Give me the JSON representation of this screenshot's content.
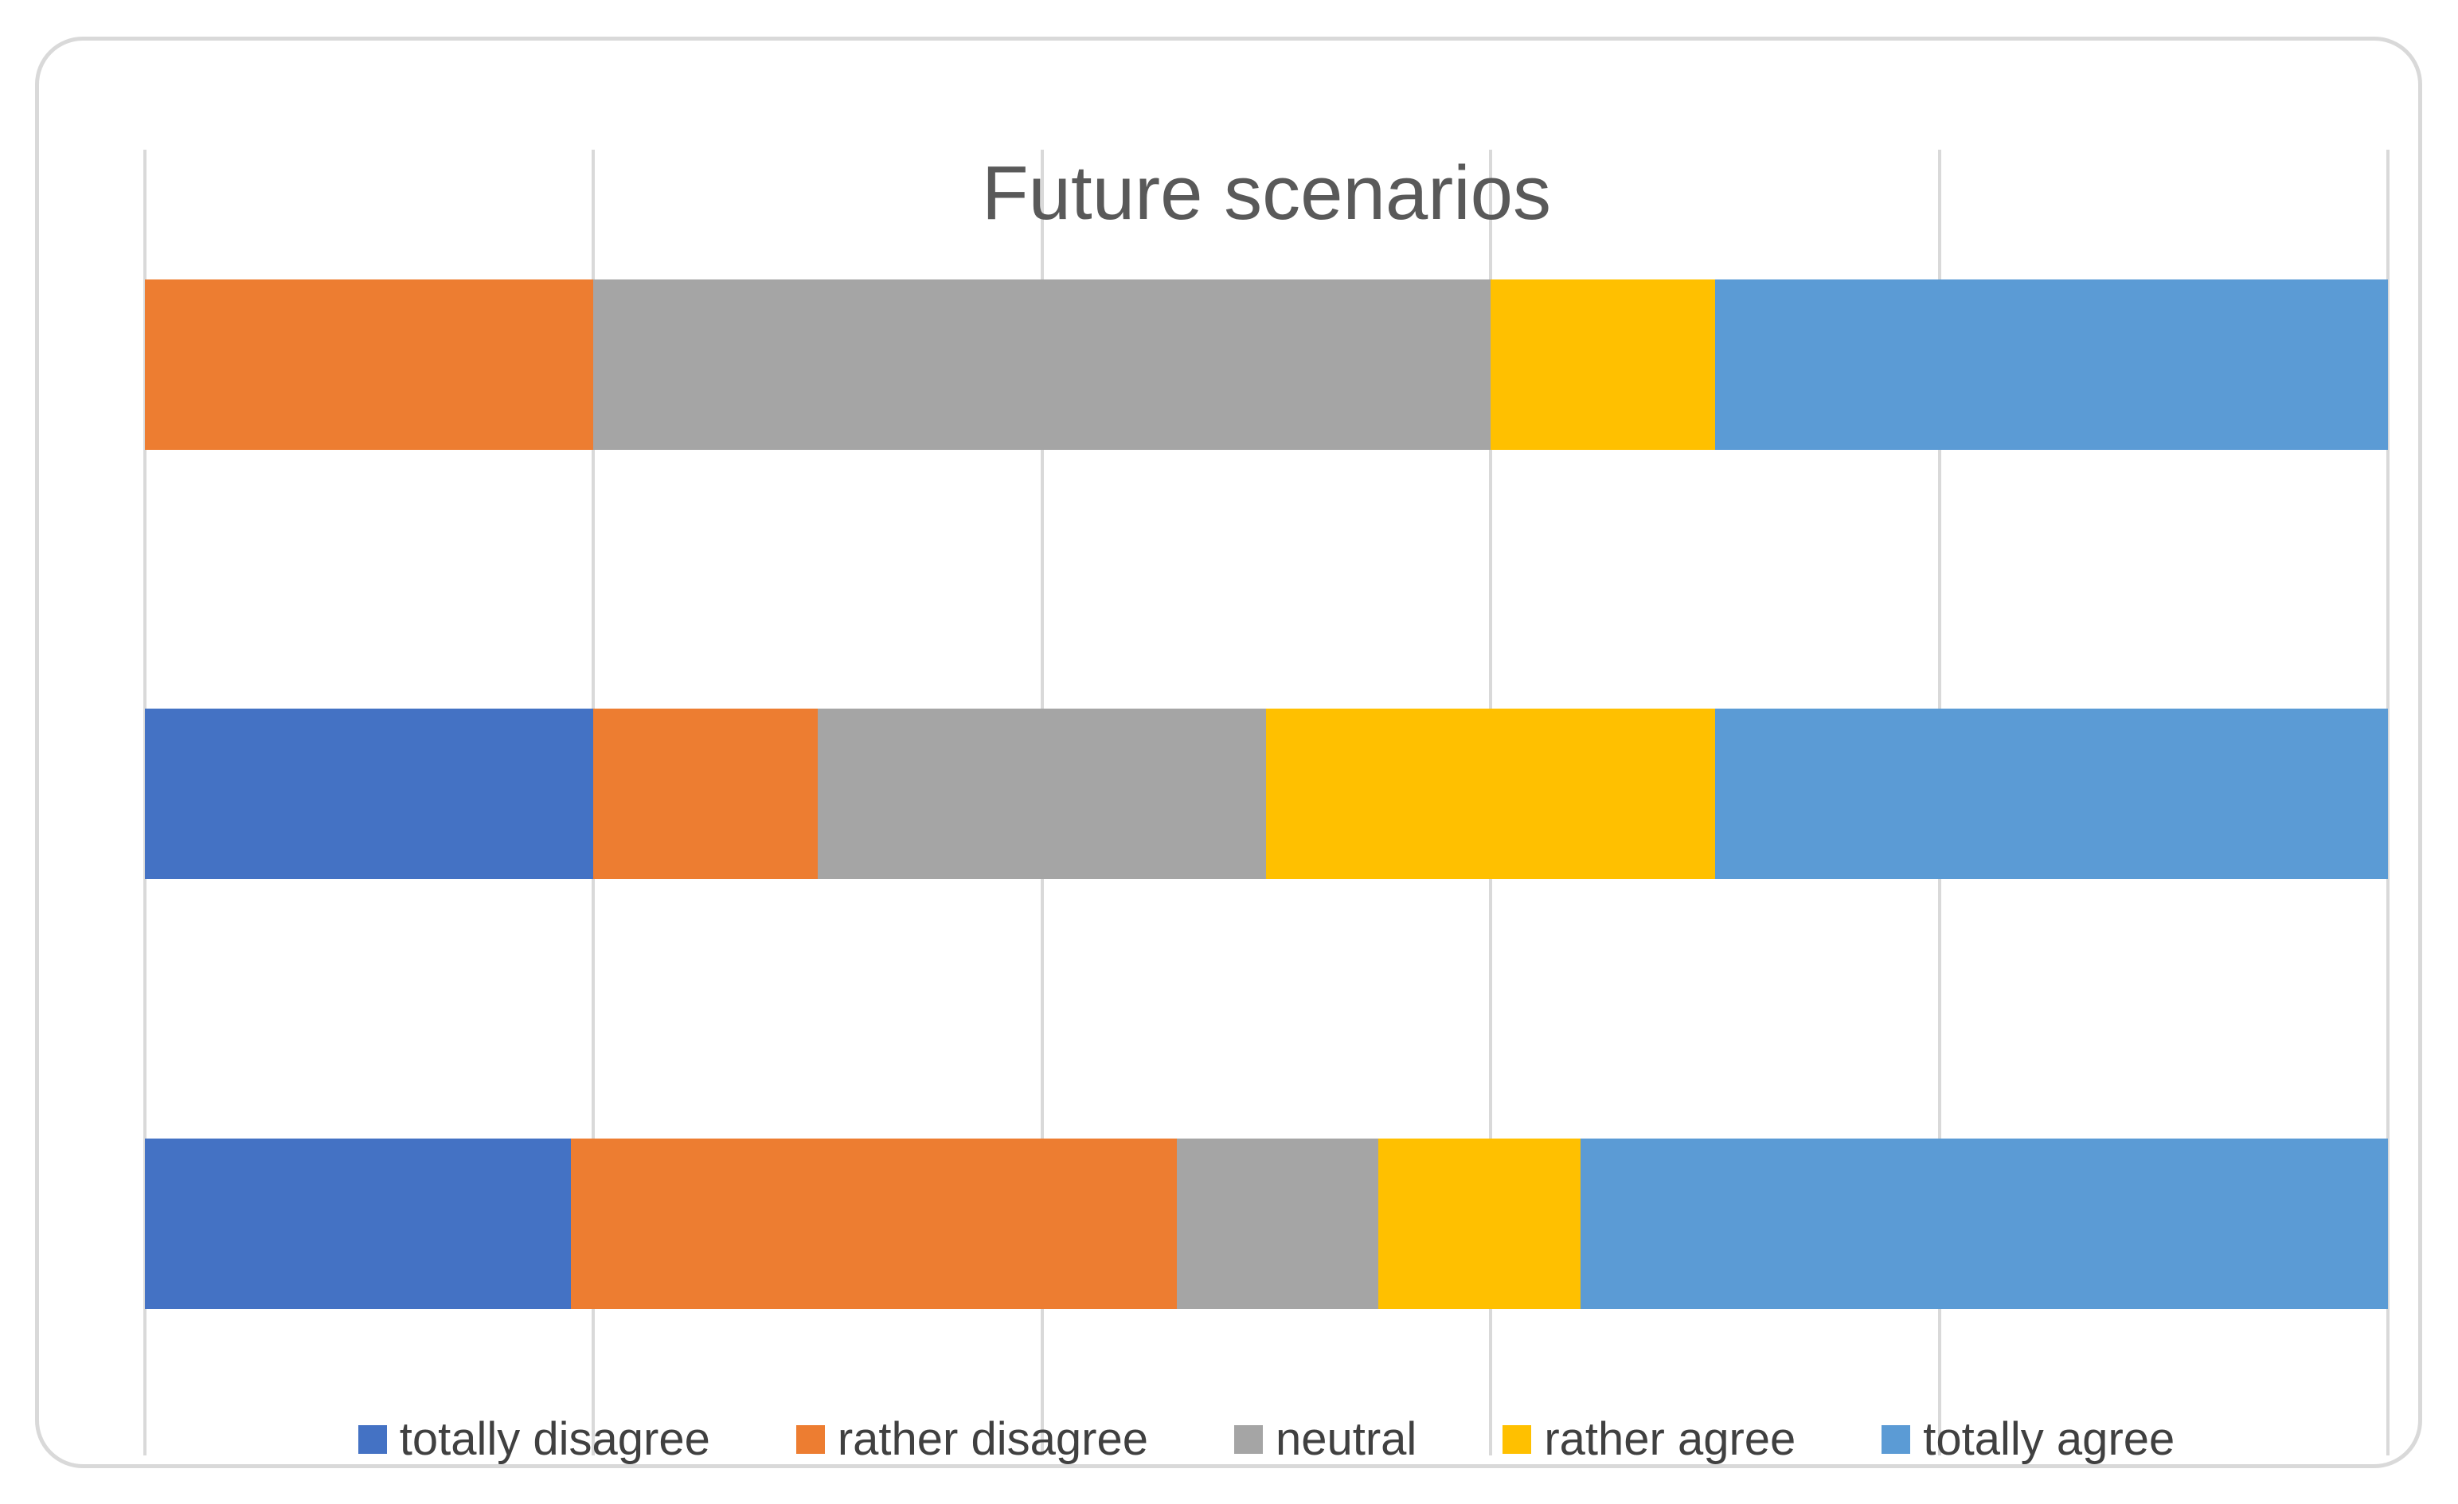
{
  "title": "Future scenarios",
  "grid_color": "#d9d9d9",
  "card_border_color": "#d9d9d9",
  "title_color": "#595959",
  "legend_text_color": "#404040",
  "chart_data": {
    "type": "bar",
    "orientation": "horizontal",
    "stacking": "100%",
    "title": "Future scenarios",
    "categories": [
      "",
      "",
      ""
    ],
    "series": [
      {
        "name": "totally disagree",
        "color": "#4472c4",
        "values": [
          0,
          20,
          19
        ]
      },
      {
        "name": "rather disagree",
        "color": "#ed7d31",
        "values": [
          20,
          10,
          27
        ]
      },
      {
        "name": "neutral",
        "color": "#a5a5a5",
        "values": [
          40,
          20,
          9
        ]
      },
      {
        "name": "rather agree",
        "color": "#ffc000",
        "values": [
          10,
          20,
          9
        ]
      },
      {
        "name": "totally agree",
        "color": "#5b9bd5",
        "values": [
          30,
          30,
          36
        ]
      }
    ],
    "xlim": [
      0,
      100
    ],
    "gridlines_pct": [
      0,
      20,
      40,
      60,
      80,
      100
    ],
    "grid": true,
    "value_axis_labels_visible": false,
    "category_axis_labels_visible": false,
    "legend_position": "bottom",
    "legend_marker": "square"
  }
}
